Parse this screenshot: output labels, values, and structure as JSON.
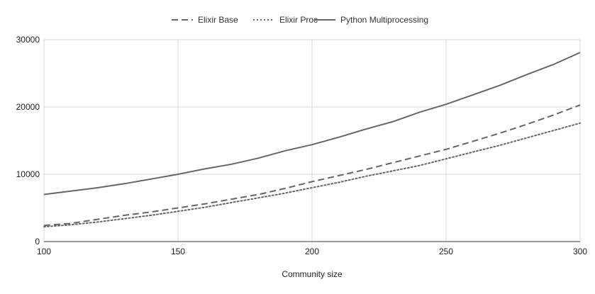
{
  "chart_data": {
    "type": "line",
    "xlabel": "Community size",
    "ylabel": "",
    "xlim": [
      100,
      300
    ],
    "ylim": [
      0,
      30000
    ],
    "x_ticks": [
      "100",
      "150",
      "200",
      "250",
      "300"
    ],
    "y_ticks": [
      "0",
      "10000",
      "20000",
      "30000"
    ],
    "grid": "vertical and horizontal",
    "legend": "top-center",
    "x": [
      100,
      110,
      120,
      130,
      140,
      150,
      160,
      170,
      180,
      190,
      200,
      210,
      220,
      230,
      240,
      250,
      260,
      270,
      280,
      290,
      300
    ],
    "series": [
      {
        "name": "Elixir Base",
        "style": "dashed",
        "color": "#666666",
        "values": [
          2400,
          2700,
          3300,
          3900,
          4400,
          5000,
          5600,
          6300,
          7000,
          7900,
          8900,
          9800,
          10700,
          11700,
          12700,
          13700,
          14900,
          16100,
          17400,
          18800,
          20300
        ]
      },
      {
        "name": "Elixir Proc",
        "style": "dotted",
        "color": "#666666",
        "values": [
          2200,
          2500,
          2900,
          3400,
          3900,
          4500,
          5100,
          5800,
          6500,
          7200,
          8000,
          8800,
          9700,
          10500,
          11300,
          12300,
          13300,
          14300,
          15400,
          16500,
          17600
        ]
      },
      {
        "name": "Python Multiprocessing",
        "style": "solid",
        "color": "#666666",
        "values": [
          7000,
          7500,
          8000,
          8600,
          9300,
          10000,
          10800,
          11500,
          12400,
          13500,
          14400,
          15500,
          16700,
          17800,
          19200,
          20400,
          21800,
          23200,
          24800,
          26300,
          28100
        ]
      }
    ]
  }
}
